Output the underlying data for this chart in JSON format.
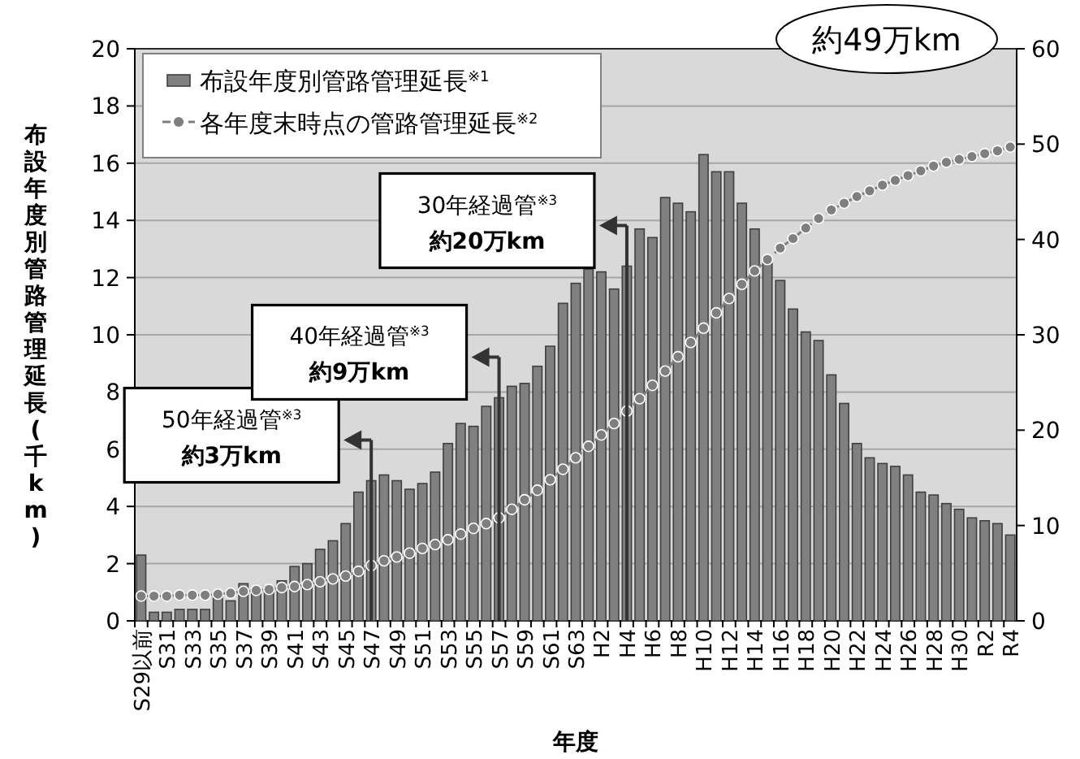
{
  "chart_data": {
    "type": "bar",
    "categories": [
      "S29以前",
      null,
      "S31",
      null,
      "S33",
      null,
      "S35",
      null,
      "S37",
      null,
      "S39",
      null,
      "S41",
      null,
      "S43",
      null,
      "S45",
      null,
      "S47",
      null,
      "S49",
      null,
      "S51",
      null,
      "S53",
      null,
      "S55",
      null,
      "S57",
      null,
      "S59",
      null,
      "S61",
      null,
      "S63",
      null,
      "H2",
      null,
      "H4",
      null,
      "H6",
      null,
      "H8",
      null,
      "H10",
      null,
      "H12",
      null,
      "H14",
      null,
      "H16",
      null,
      "H18",
      null,
      "H20",
      null,
      "H22",
      null,
      "H24",
      null,
      "H26",
      null,
      "H28",
      null,
      "H30",
      null,
      "R2",
      null,
      "R4"
    ],
    "series": [
      {
        "name": "布設年度別管路管理延長$^{※1}$",
        "color": "#808080",
        "values": [
          2.3,
          0.3,
          0.3,
          0.4,
          0.4,
          0.4,
          0.8,
          0.7,
          1.3,
          1.1,
          1.2,
          1.4,
          1.9,
          2.0,
          2.5,
          2.8,
          3.4,
          4.5,
          4.9,
          5.1,
          4.9,
          4.6,
          4.8,
          5.2,
          6.2,
          6.9,
          6.8,
          7.5,
          7.8,
          8.2,
          8.3,
          8.9,
          9.6,
          11.1,
          11.8,
          12.3,
          12.2,
          11.6,
          12.4,
          13.7,
          13.4,
          14.8,
          14.6,
          14.3,
          16.3,
          15.7,
          15.7,
          14.6,
          13.7,
          12.5,
          11.9,
          10.9,
          10.1,
          9.8,
          8.6,
          7.6,
          6.2,
          5.7,
          5.5,
          5.4,
          5.1,
          4.5,
          4.4,
          4.1,
          3.9,
          3.6,
          3.5,
          3.4,
          3.0
        ]
      },
      {
        "name": "各年度末時点の管路管理延長$^{※2}$",
        "type": "line",
        "axis": "y2",
        "marker": "circle",
        "line_style": "dashed",
        "color": "#7f7f7f",
        "values": [
          2.6,
          2.6,
          2.6,
          2.7,
          2.7,
          2.7,
          2.8,
          2.9,
          3.1,
          3.2,
          3.3,
          3.5,
          3.6,
          3.8,
          4.1,
          4.4,
          4.7,
          5.2,
          5.8,
          6.3,
          6.7,
          7.1,
          7.6,
          8.0,
          8.5,
          9.1,
          9.7,
          10.2,
          10.8,
          11.7,
          12.7,
          13.7,
          14.8,
          15.9,
          17.1,
          18.3,
          19.5,
          20.7,
          22.0,
          23.3,
          24.7,
          26.2,
          27.7,
          29.2,
          30.7,
          32.3,
          33.8,
          35.3,
          36.7,
          37.9,
          39.1,
          40.1,
          41.2,
          42.2,
          43.1,
          43.8,
          44.5,
          45.1,
          45.7,
          46.2,
          46.7,
          47.2,
          47.7,
          48.1,
          48.4,
          48.7,
          49.0,
          49.3,
          49.7
        ]
      }
    ],
    "ylim": [
      0,
      20
    ],
    "yticks": [
      0,
      2,
      4,
      6,
      8,
      10,
      12,
      14,
      16,
      18,
      20
    ],
    "y2lim": [
      0,
      60
    ],
    "y2ticks": [
      0,
      10,
      20,
      30,
      40,
      50,
      60
    ],
    "ylabel": "布設年度別管路管理延長(千km)",
    "xlabel": "年度",
    "grid": "y",
    "legend": "top left",
    "annotations": [
      "50年経過管$^{※3}$ 約3万km",
      "40年経過管$^{※3}$ 約9万km",
      "30年経過管$^{※3}$ 約20万km",
      "約49万km"
    ],
    "ref_lines": [
      {
        "axis": "x",
        "value": "S47",
        "color": "#333333"
      },
      {
        "axis": "x",
        "value": "S57",
        "color": "#333333"
      },
      {
        "axis": "x",
        "value": "H4",
        "color": "#333333"
      }
    ]
  }
}
